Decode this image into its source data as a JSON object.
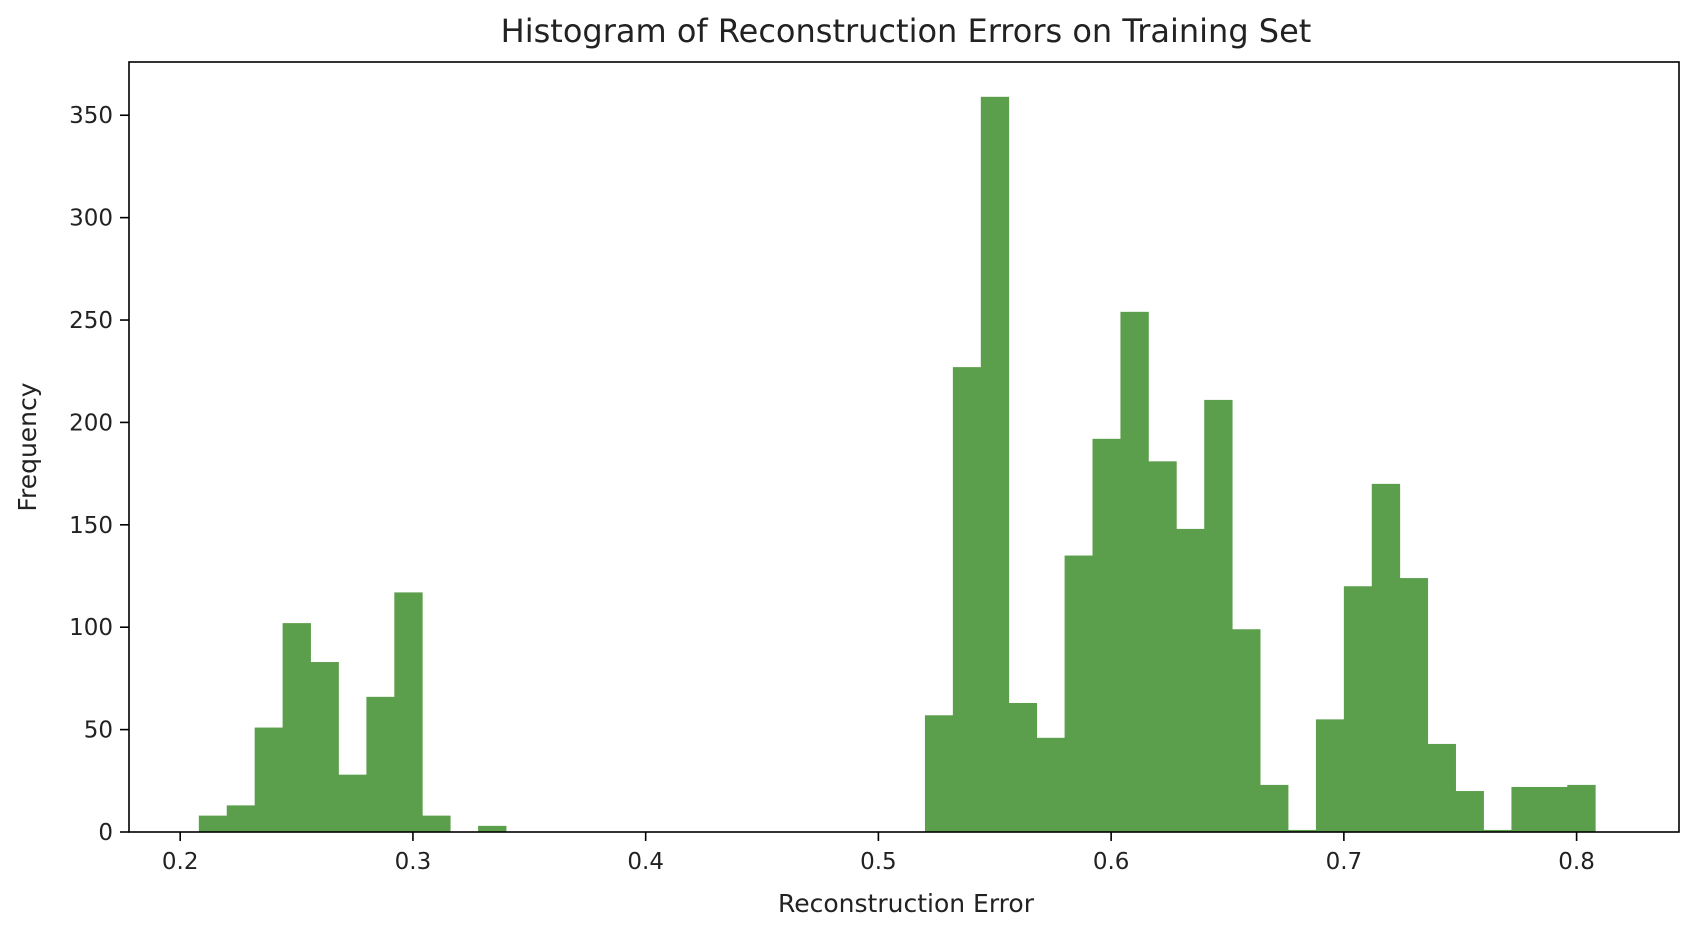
{
  "chart_data": {
    "type": "bar",
    "title": "Histogram of Reconstruction Errors on Training Set",
    "xlabel": "Reconstruction Error",
    "ylabel": "Frequency",
    "xlim": [
      0.178,
      0.844
    ],
    "ylim": [
      0,
      376
    ],
    "xticks": [
      0.2,
      0.3,
      0.4,
      0.5,
      0.6,
      0.7,
      0.8
    ],
    "xtick_labels": [
      "0.2",
      "0.3",
      "0.4",
      "0.5",
      "0.6",
      "0.7",
      "0.8"
    ],
    "yticks": [
      0,
      50,
      100,
      150,
      200,
      250,
      300,
      350
    ],
    "ytick_labels": [
      "0",
      "50",
      "100",
      "150",
      "200",
      "250",
      "300",
      "350"
    ],
    "bin_start": 0.208,
    "bin_width": 0.012,
    "bin_counts": [
      8,
      13,
      51,
      102,
      83,
      28,
      66,
      117,
      8,
      0,
      3,
      0,
      0,
      0,
      0,
      0,
      0,
      0,
      0,
      0,
      0,
      0,
      0,
      0,
      0,
      0,
      57,
      227,
      359,
      63,
      46,
      135,
      192,
      254,
      181,
      148,
      211,
      99,
      23,
      1,
      55,
      120,
      170,
      124,
      43,
      20,
      1,
      22,
      22,
      23
    ],
    "bar_color": "#5b9e4b",
    "grid": false,
    "legend": null
  }
}
